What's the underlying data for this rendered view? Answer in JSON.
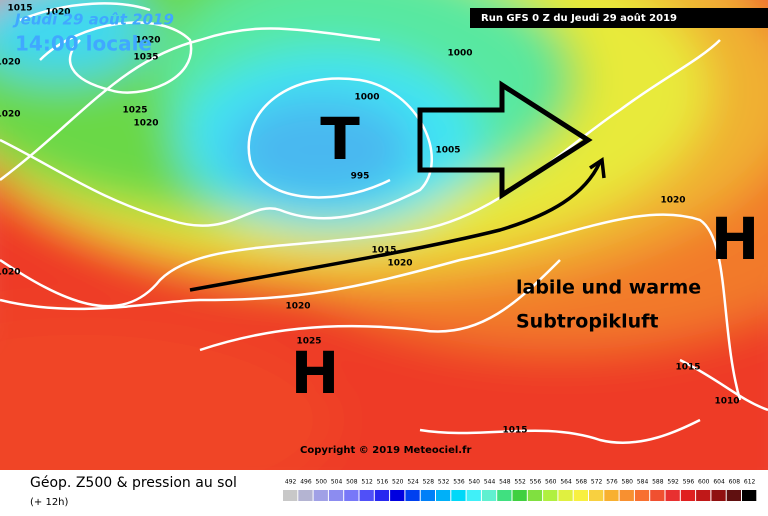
{
  "header": {
    "date": "Jeudi 29 août 2019",
    "time": "14:00 locale",
    "run": "Run GFS 0 Z du Jeudi 29 août 2019"
  },
  "isobar_labels": [
    1015,
    1020,
    1020,
    1035,
    1020,
    1025,
    1020,
    1020,
    1000,
    1000,
    1005,
    995,
    1020,
    1020,
    1015,
    1020,
    1020,
    1025,
    1015,
    1010,
    1015
  ],
  "pressure_systems": [
    "T",
    "H",
    "H"
  ],
  "annotation": [
    "labile und warme",
    "Subtropikluft"
  ],
  "copyright": "Copyright © 2019 Meteociel.fr",
  "legend": {
    "title": "Géop. Z500 & pression au sol",
    "subtitle": "(+ 12h)",
    "scale": [
      492,
      496,
      500,
      504,
      508,
      512,
      516,
      520,
      524,
      528,
      532,
      536,
      540,
      544,
      548,
      552,
      556,
      560,
      564,
      568,
      572,
      576,
      580,
      584,
      588,
      592,
      596,
      600,
      604,
      608,
      612
    ],
    "colors": [
      "#c8c8c8",
      "#b4b4d2",
      "#a0a0e6",
      "#8c8cf0",
      "#7878f8",
      "#5050f8",
      "#2828f0",
      "#0000e0",
      "#0040f0",
      "#0080f8",
      "#00b0f8",
      "#00d8f8",
      "#40f0f8",
      "#60f0d0",
      "#40e080",
      "#40d040",
      "#80e040",
      "#b0f040",
      "#e0f040",
      "#f8f040",
      "#f8d040",
      "#f8b030",
      "#f89030",
      "#f87030",
      "#f05030",
      "#e83030",
      "#e02020",
      "#c01818",
      "#901010",
      "#601010",
      "#000000"
    ]
  }
}
